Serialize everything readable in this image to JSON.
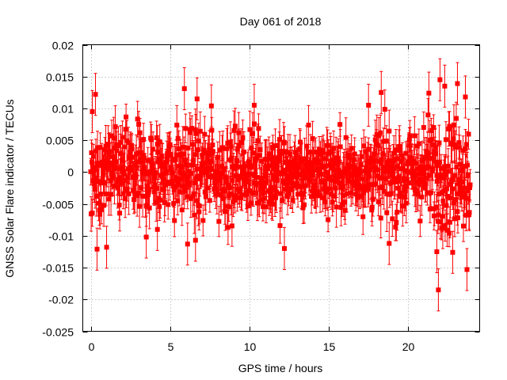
{
  "chart_data": {
    "type": "scatter",
    "title": "Day 061 of 2018",
    "xlabel": "GPS time / hours",
    "ylabel": "GNSS Solar Flare indicator / TECUs",
    "xlim": [
      -0.5,
      24.5
    ],
    "ylim": [
      -0.025,
      0.02
    ],
    "x_ticks": [
      0,
      5,
      10,
      15,
      20
    ],
    "x_tick_labels": [
      "0",
      "5",
      "10",
      "15",
      "20"
    ],
    "y_ticks": [
      -0.025,
      -0.02,
      -0.015,
      -0.01,
      -0.005,
      0,
      0.005,
      0.01,
      0.015,
      0.02
    ],
    "y_tick_labels": [
      "-0.025",
      "-0.02",
      "-0.015",
      "-0.01",
      "-0.005",
      "0",
      "0.005",
      "0.01",
      "0.015",
      "0.02"
    ],
    "grid": true,
    "color": "#ff0000",
    "series": [
      {
        "name": "GNSS Solar Flare indicator",
        "marker": "square",
        "error_bars": true,
        "x_range": [
          0,
          23.9
        ],
        "sample_interval_hours": 0.025,
        "typical_spread": 0.0045,
        "typical_error": 0.003,
        "notable_points": [
          {
            "x": 0.1,
            "y": 0.0095
          },
          {
            "x": 0.3,
            "y": 0.0122
          },
          {
            "x": 0.4,
            "y": -0.0121
          },
          {
            "x": 1.0,
            "y": -0.0118
          },
          {
            "x": 3.5,
            "y": -0.0102
          },
          {
            "x": 4.2,
            "y": -0.009
          },
          {
            "x": 5.9,
            "y": 0.0131
          },
          {
            "x": 6.1,
            "y": -0.0113
          },
          {
            "x": 6.6,
            "y": -0.0107
          },
          {
            "x": 6.7,
            "y": 0.0115
          },
          {
            "x": 7.6,
            "y": 0.0104
          },
          {
            "x": 10.3,
            "y": 0.0105
          },
          {
            "x": 12.2,
            "y": -0.012
          },
          {
            "x": 17.5,
            "y": 0.0105
          },
          {
            "x": 18.3,
            "y": 0.0125
          },
          {
            "x": 18.8,
            "y": -0.0112
          },
          {
            "x": 21.3,
            "y": 0.0124
          },
          {
            "x": 21.8,
            "y": -0.0125
          },
          {
            "x": 21.9,
            "y": -0.0185
          },
          {
            "x": 22.0,
            "y": 0.0145
          },
          {
            "x": 22.3,
            "y": 0.0135
          },
          {
            "x": 22.8,
            "y": -0.0126
          },
          {
            "x": 23.1,
            "y": 0.0139
          },
          {
            "x": 23.6,
            "y": 0.0118
          },
          {
            "x": 23.7,
            "y": -0.0153
          }
        ]
      }
    ]
  }
}
